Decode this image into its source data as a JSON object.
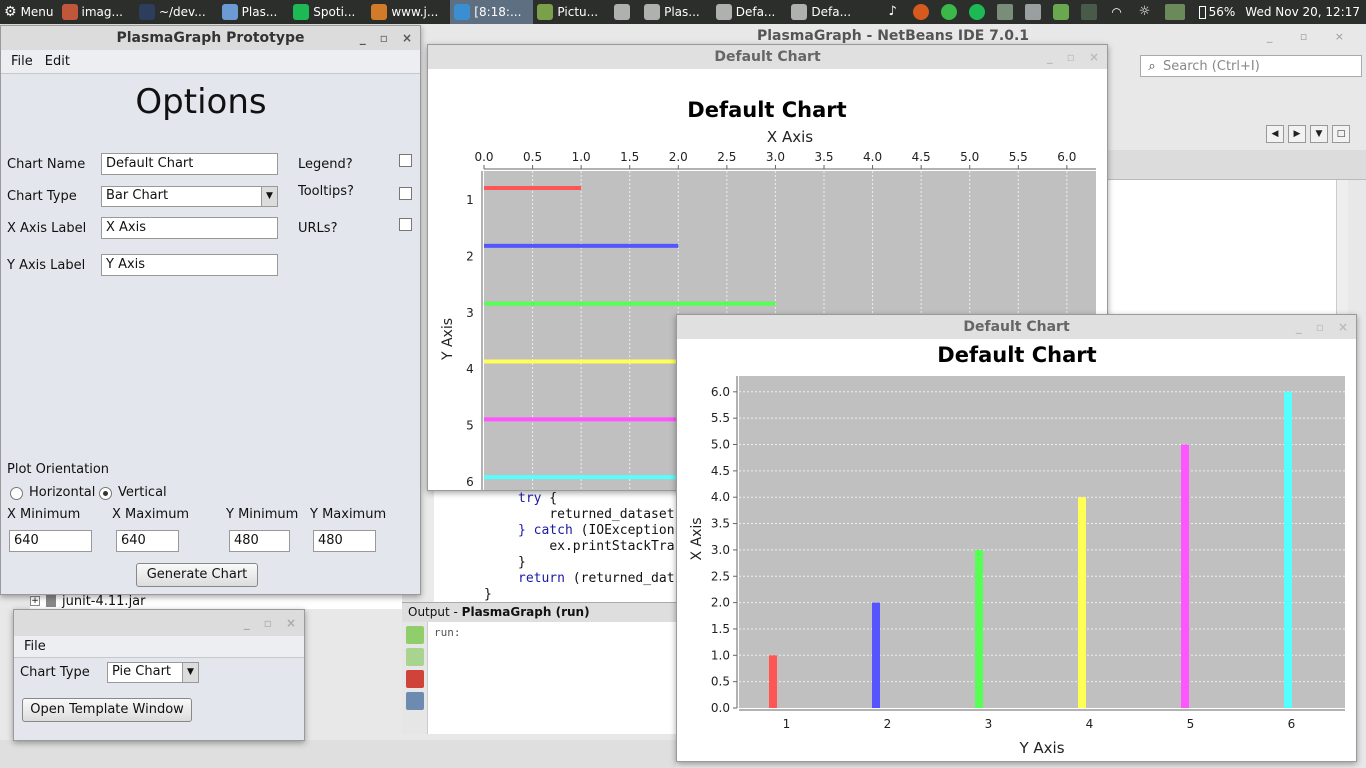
{
  "taskbar": {
    "menu_label": "Menu",
    "apps": [
      {
        "label": "imag...",
        "color": "#c0573a"
      },
      {
        "label": "~/dev...",
        "color": "#2d3d5c"
      },
      {
        "label": "Plas...",
        "color": "#6b9bd2"
      },
      {
        "label": "Spoti...",
        "color": "#1db954"
      },
      {
        "label": "www.j...",
        "color": "#d17a2a"
      },
      {
        "label": "[8:18:...",
        "color": "#3a8ed1"
      },
      {
        "label": "Pictu...",
        "color": "#7aa14a"
      },
      {
        "label": "",
        "color": "#b0b0b0"
      },
      {
        "label": "Plas...",
        "color": "#b0b0b0"
      },
      {
        "label": "Defa...",
        "color": "#b0b0b0"
      },
      {
        "label": "Defa...",
        "color": "#b0b0b0"
      }
    ],
    "battery": "56%",
    "clock": "Wed Nov 20, 12:17"
  },
  "netbeans": {
    "title": "PlasmaGraph - NetBeans IDE 7.0.1",
    "search_placeholder": "Search (Ctrl+I)",
    "code_lines": [
      {
        "prefix": "",
        "kw": "try",
        "rest": " {"
      },
      {
        "prefix": "    ",
        "kw": "",
        "rest": "returned_dataset"
      },
      {
        "prefix": "",
        "kw": "} catch",
        "rest": " (IOException"
      },
      {
        "prefix": "    ",
        "kw": "",
        "rest": "ex.printStackTra"
      },
      {
        "prefix": "",
        "kw": "",
        "rest": "}"
      },
      {
        "prefix": "",
        "kw": "return",
        "rest": " (returned_dat"
      },
      {
        "prefix": "",
        "kw": "",
        "rest": "}"
      }
    ],
    "output_label": "Output - ",
    "output_title": "PlasmaGraph (run)",
    "output_text": "run:",
    "jar_item": "junit-4.11.jar"
  },
  "options_window": {
    "title": "PlasmaGraph Prototype",
    "menu": {
      "file": "File",
      "edit": "Edit"
    },
    "heading": "Options",
    "chart_name_label": "Chart Name",
    "chart_name_value": "Default Chart",
    "chart_type_label": "Chart Type",
    "chart_type_value": "Bar Chart",
    "x_axis_label": "X Axis Label",
    "x_axis_value": "X Axis",
    "y_axis_label": "Y Axis Label",
    "y_axis_value": "Y Axis",
    "legend_label": "Legend?",
    "tooltips_label": "Tooltips?",
    "urls_label": "URLs?",
    "plot_orientation_label": "Plot Orientation",
    "horizontal_label": "Horizontal",
    "vertical_label": "Vertical",
    "x_min_label": "X Minimum",
    "x_max_label": "X Maximum",
    "y_min_label": "Y Minimum",
    "y_max_label": "Y Maximum",
    "x_min_value": "640",
    "x_max_value": "640",
    "y_min_value": "480",
    "y_max_value": "480",
    "generate_button": "Generate Chart"
  },
  "template_window": {
    "menu_file": "File",
    "chart_type_label": "Chart Type",
    "chart_type_value": "Pie Chart",
    "open_button": "Open Template Window"
  },
  "chart_data": [
    {
      "window_title": "Default Chart",
      "type": "bar",
      "orientation": "horizontal",
      "title": "Default Chart",
      "xlabel": "X Axis",
      "ylabel": "Y Axis",
      "categories": [
        "1",
        "2",
        "3",
        "4",
        "5",
        "6"
      ],
      "values": [
        1.0,
        2.0,
        3.0,
        4.0,
        5.0,
        6.0
      ],
      "colors": [
        "#ff5555",
        "#5555ff",
        "#55ff55",
        "#ffff55",
        "#ff55ff",
        "#55ffff"
      ],
      "value_ticks": [
        "0.0",
        "0.5",
        "1.0",
        "1.5",
        "2.0",
        "2.5",
        "3.0",
        "3.5",
        "4.0",
        "4.5",
        "5.0",
        "5.5",
        "6.0"
      ],
      "xlim": [
        0,
        6.3
      ],
      "grid": true,
      "plot_background": "#c0c0c0"
    },
    {
      "window_title": "Default Chart",
      "type": "bar",
      "orientation": "vertical",
      "title": "Default Chart",
      "xlabel": "Y Axis",
      "ylabel": "X Axis",
      "categories": [
        "1",
        "2",
        "3",
        "4",
        "5",
        "6"
      ],
      "values": [
        1.0,
        2.0,
        3.0,
        4.0,
        5.0,
        6.0
      ],
      "colors": [
        "#ff5555",
        "#5555ff",
        "#55ff55",
        "#ffff55",
        "#ff55ff",
        "#55ffff"
      ],
      "value_ticks": [
        "0.0",
        "0.5",
        "1.0",
        "1.5",
        "2.0",
        "2.5",
        "3.0",
        "3.5",
        "4.0",
        "4.5",
        "5.0",
        "5.5",
        "6.0"
      ],
      "ylim": [
        0,
        6.3
      ],
      "grid": true,
      "plot_background": "#c0c0c0"
    }
  ]
}
